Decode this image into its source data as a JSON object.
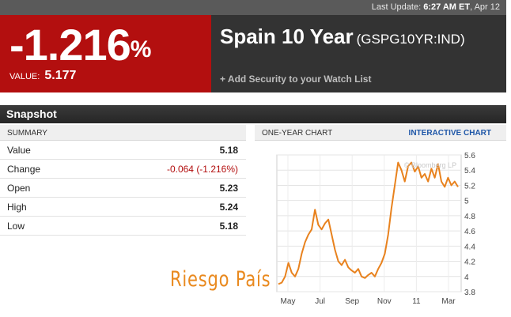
{
  "topbar": {
    "prefix": "Last Update:",
    "time": "6:27 AM ET",
    "date": ", Apr 12"
  },
  "quote": {
    "change_percent": "-1.216",
    "percent_sign": "%",
    "value_label": "VALUE:",
    "value": "5.177",
    "name": "Spain 10 Year",
    "ticker": "(GSPG10YR:IND)",
    "watch_label": "+ Add Security to your Watch List"
  },
  "snapshot": {
    "title": "Snapshot"
  },
  "summary": {
    "header": "SUMMARY",
    "rows": [
      {
        "label": "Value",
        "value": "5.18"
      },
      {
        "label": "Change",
        "value": "-0.064 (-1.216%)"
      },
      {
        "label": "Open",
        "value": "5.23"
      },
      {
        "label": "High",
        "value": "5.24"
      },
      {
        "label": "Low",
        "value": "5.18"
      }
    ]
  },
  "chart_panel": {
    "header": "ONE-YEAR CHART",
    "link": "INTERACTIVE CHART",
    "watermark": "© Bloomberg LP"
  },
  "overlay_text": "Riesgo País",
  "colors": {
    "accent_red": "#b30f0f",
    "line": "#e8821e",
    "link_blue": "#1f57a8"
  },
  "chart_data": {
    "type": "line",
    "title": "",
    "xlabel": "",
    "ylabel": "",
    "x_ticks": [
      "May",
      "Jul",
      "Sep",
      "Nov",
      "11",
      "Mar"
    ],
    "y_ticks": [
      "3.8",
      "4",
      "4.2",
      "4.4",
      "4.6",
      "4.8",
      "5",
      "5.2",
      "5.4",
      "5.6"
    ],
    "ylim": [
      3.8,
      5.6
    ],
    "grid": true,
    "series": [
      {
        "values": [
          3.9,
          3.92,
          4.0,
          4.18,
          4.05,
          4.0,
          4.1,
          4.3,
          4.45,
          4.55,
          4.62,
          4.88,
          4.68,
          4.62,
          4.7,
          4.75,
          4.55,
          4.35,
          4.2,
          4.15,
          4.22,
          4.12,
          4.08,
          4.05,
          4.1,
          4.0,
          3.98,
          4.02,
          4.05,
          4.0,
          4.1,
          4.18,
          4.3,
          4.55,
          4.9,
          5.2,
          5.5,
          5.4,
          5.25,
          5.45,
          5.5,
          5.38,
          5.45,
          5.3,
          5.35,
          5.25,
          5.42,
          5.3,
          5.48,
          5.25,
          5.18,
          5.3,
          5.2,
          5.25,
          5.18
        ]
      }
    ]
  }
}
